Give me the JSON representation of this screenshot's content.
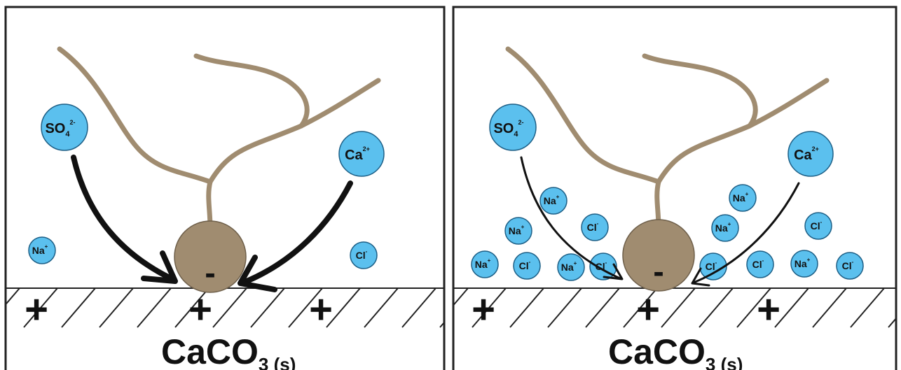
{
  "colors": {
    "ion_fill": "#5bc0ee",
    "ion_stroke": "#1d5f86",
    "molecule_color": "#a08c70",
    "arrow_color": "#111111",
    "frame_color": "#222222"
  },
  "panels": [
    {
      "id": "left",
      "substrate": {
        "formula": "CaCO",
        "subscript": "3 (s)",
        "surface_charge": "+"
      },
      "molecule": {
        "head_charge": "-"
      },
      "large_ions": [
        {
          "base": "SO",
          "sub": "4",
          "sup": "2-"
        },
        {
          "base": "Ca",
          "sub": "",
          "sup": "2+"
        }
      ],
      "small_ions": [
        {
          "base": "Na",
          "sup": "+"
        },
        {
          "base": "Cl",
          "sup": "-"
        }
      ]
    },
    {
      "id": "right",
      "substrate": {
        "formula": "CaCO",
        "subscript": "3 (s)",
        "surface_charge": "+"
      },
      "molecule": {
        "head_charge": "-"
      },
      "large_ions": [
        {
          "base": "SO",
          "sub": "4",
          "sup": "2-"
        },
        {
          "base": "Ca",
          "sub": "",
          "sup": "2+"
        }
      ],
      "small_ions": [
        {
          "base": "Na",
          "sup": "+"
        },
        {
          "base": "Na",
          "sup": "+"
        },
        {
          "base": "Cl",
          "sup": "-"
        },
        {
          "base": "Na",
          "sup": "+"
        },
        {
          "base": "Cl",
          "sup": "-"
        },
        {
          "base": "Na",
          "sup": "+"
        },
        {
          "base": "Cl",
          "sup": "-"
        },
        {
          "base": "Cl",
          "sup": "-"
        },
        {
          "base": "Na",
          "sup": "+"
        },
        {
          "base": "Na",
          "sup": "+"
        },
        {
          "base": "Cl",
          "sup": "-"
        },
        {
          "base": "Cl",
          "sup": "-"
        },
        {
          "base": "Na",
          "sup": "+"
        },
        {
          "base": "Cl",
          "sup": "-"
        }
      ]
    }
  ]
}
